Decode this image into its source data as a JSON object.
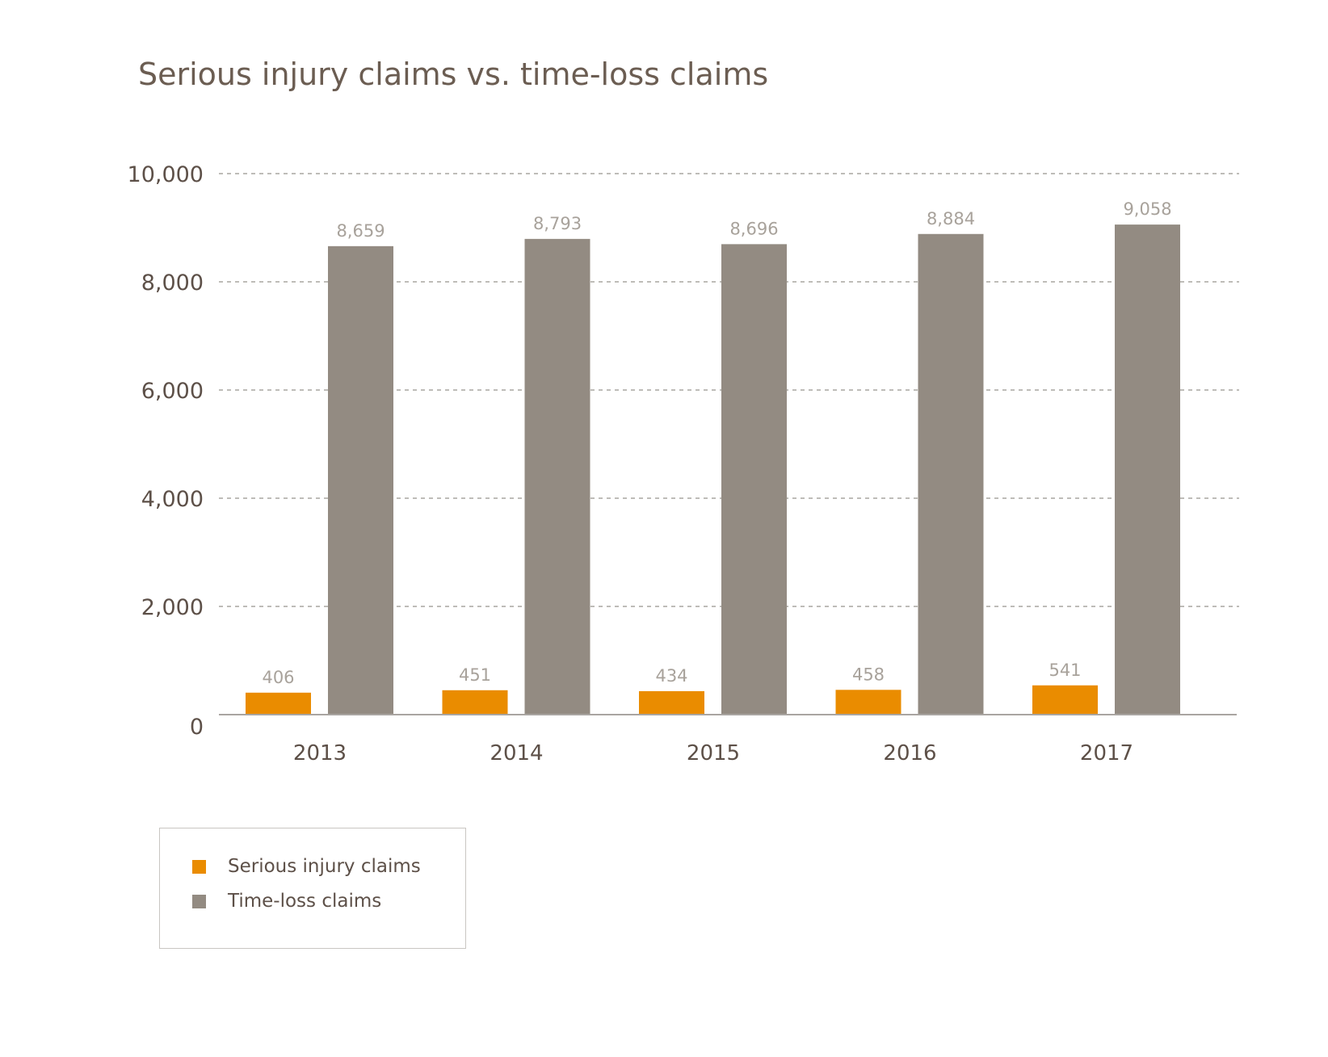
{
  "chart_data": {
    "type": "bar",
    "title": "Serious injury claims vs. time-loss claims",
    "categories": [
      "2013",
      "2014",
      "2015",
      "2016",
      "2017"
    ],
    "series": [
      {
        "name": "Serious injury claims",
        "color": "#ea8c00",
        "values": [
          406,
          451,
          434,
          458,
          541
        ],
        "labels": [
          "406",
          "451",
          "434",
          "458",
          "541"
        ]
      },
      {
        "name": "Time-loss claims",
        "color": "#938b82",
        "values": [
          8659,
          8793,
          8696,
          8884,
          9058
        ],
        "labels": [
          "8,659",
          "8,793",
          "8,696",
          "8,884",
          "9,058"
        ]
      }
    ],
    "yticks": [
      0,
      2000,
      4000,
      6000,
      8000,
      10000
    ],
    "ytick_labels": [
      "0",
      "2,000",
      "4,000",
      "6,000",
      "8,000",
      "10,000"
    ],
    "ylim": [
      0,
      10000
    ],
    "grid": true,
    "legend_position": "bottom-left",
    "xlabel": "",
    "ylabel": ""
  }
}
